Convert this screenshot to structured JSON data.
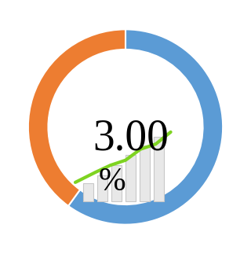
{
  "chart_data": {
    "type": "pie",
    "values": [
      60,
      40
    ],
    "colors": [
      "#5b9bd5",
      "#ed7d31"
    ],
    "annotations": [
      "3.00",
      "%"
    ]
  }
}
